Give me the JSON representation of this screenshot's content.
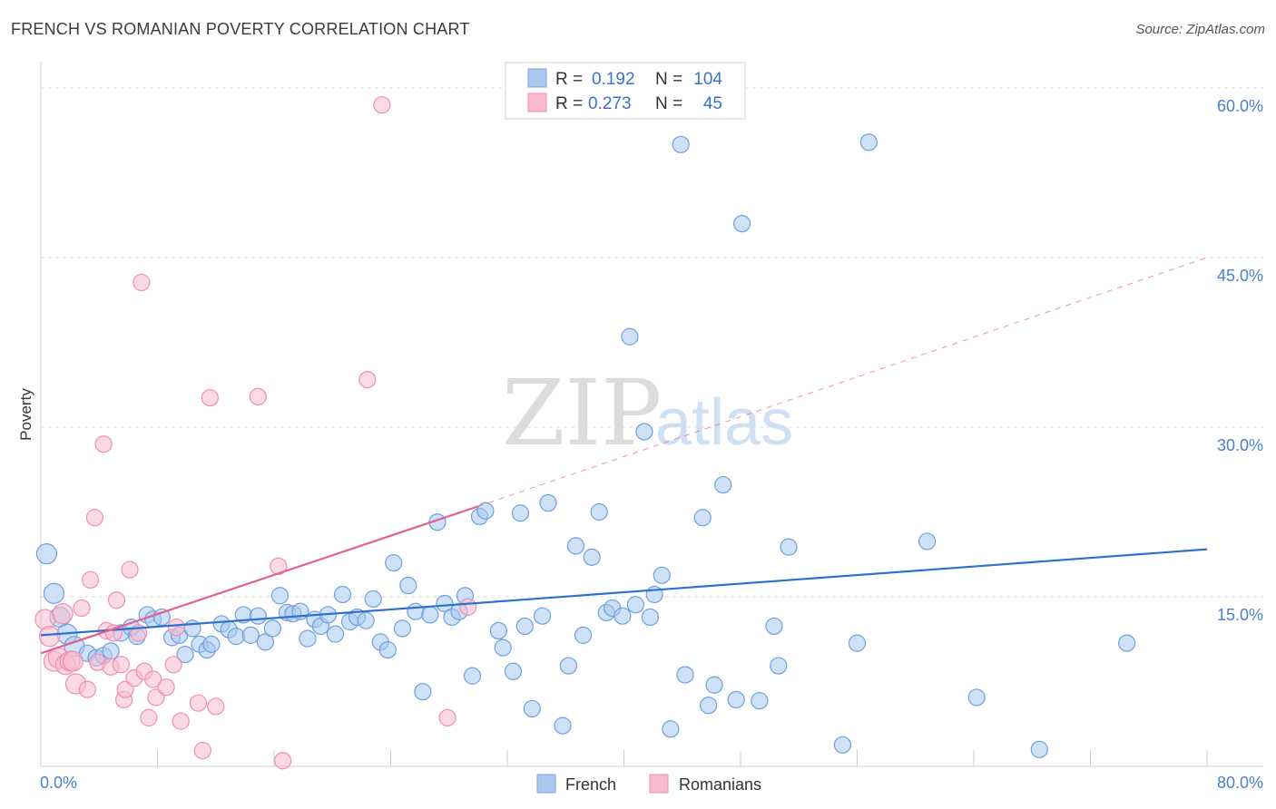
{
  "title": "FRENCH VS ROMANIAN POVERTY CORRELATION CHART",
  "source": "Source: ZipAtlas.com",
  "watermark": {
    "part1": "ZIP",
    "part2": "atlas"
  },
  "legend": {
    "rows": [
      {
        "r_label": "R =",
        "r_value": "0.192",
        "n_label": "N =",
        "n_value": "104",
        "color": "#a8c8f0",
        "stroke": "#7aa6de"
      },
      {
        "r_label": "R =",
        "r_value": "0.273",
        "n_label": "N =",
        "n_value": "45",
        "color": "#f8bcd0",
        "stroke": "#ee8eaf"
      }
    ]
  },
  "bottom_legend": [
    {
      "label": "French",
      "color": "#a8c8f0",
      "stroke": "#7aa6de"
    },
    {
      "label": "Romanians",
      "color": "#f8bcd0",
      "stroke": "#ee8eaf"
    }
  ],
  "chart_data": {
    "type": "scatter",
    "title": "FRENCH VS ROMANIAN POVERTY CORRELATION CHART",
    "xlabel": "",
    "ylabel": "Poverty",
    "xlim": [
      0,
      80
    ],
    "ylim": [
      0,
      60
    ],
    "x_tick_labels": [
      "0.0%",
      "80.0%"
    ],
    "y_ticks": [
      15,
      30,
      45,
      60
    ],
    "y_tick_labels": [
      "15.0%",
      "30.0%",
      "45.0%",
      "60.0%"
    ],
    "grid": true,
    "series": [
      {
        "name": "French",
        "color": "#6fa0e0",
        "fill": "#a8c8f0",
        "line_color": "#2f72cc",
        "trend": {
          "x": [
            0,
            80
          ],
          "y": [
            11.6,
            19.2
          ]
        },
        "points": [
          [
            0.4,
            18.8
          ],
          [
            0.9,
            15.3
          ],
          [
            1.3,
            13.2
          ],
          [
            1.8,
            11.7
          ],
          [
            2.3,
            10.6
          ],
          [
            3.2,
            10.0
          ],
          [
            3.8,
            9.6
          ],
          [
            4.3,
            9.8
          ],
          [
            4.8,
            10.2
          ],
          [
            5.5,
            11.8
          ],
          [
            6.2,
            12.3
          ],
          [
            6.6,
            11.5
          ],
          [
            7.3,
            13.4
          ],
          [
            7.7,
            13.0
          ],
          [
            8.3,
            13.2
          ],
          [
            9.0,
            11.4
          ],
          [
            9.5,
            11.6
          ],
          [
            9.9,
            9.9
          ],
          [
            10.4,
            12.2
          ],
          [
            10.9,
            10.8
          ],
          [
            11.4,
            10.3
          ],
          [
            11.7,
            10.8
          ],
          [
            12.4,
            12.6
          ],
          [
            12.9,
            12.1
          ],
          [
            13.4,
            11.5
          ],
          [
            13.9,
            13.4
          ],
          [
            14.4,
            11.6
          ],
          [
            14.9,
            13.3
          ],
          [
            15.4,
            11.0
          ],
          [
            15.9,
            12.2
          ],
          [
            16.4,
            15.1
          ],
          [
            16.9,
            13.6
          ],
          [
            17.3,
            13.5
          ],
          [
            17.8,
            13.7
          ],
          [
            18.3,
            11.3
          ],
          [
            18.8,
            13.0
          ],
          [
            19.2,
            12.4
          ],
          [
            19.7,
            13.4
          ],
          [
            20.2,
            11.7
          ],
          [
            20.7,
            15.2
          ],
          [
            21.2,
            12.8
          ],
          [
            21.7,
            13.2
          ],
          [
            22.3,
            12.9
          ],
          [
            22.8,
            14.8
          ],
          [
            23.3,
            11.0
          ],
          [
            23.8,
            10.3
          ],
          [
            24.2,
            18.0
          ],
          [
            24.8,
            12.2
          ],
          [
            25.2,
            16.0
          ],
          [
            25.7,
            13.7
          ],
          [
            26.2,
            6.6
          ],
          [
            26.7,
            13.4
          ],
          [
            27.2,
            21.6
          ],
          [
            27.7,
            14.4
          ],
          [
            28.2,
            13.2
          ],
          [
            28.7,
            13.7
          ],
          [
            29.1,
            15.1
          ],
          [
            29.6,
            8.0
          ],
          [
            30.1,
            22.1
          ],
          [
            30.5,
            22.6
          ],
          [
            31.4,
            12.0
          ],
          [
            31.7,
            10.5
          ],
          [
            32.4,
            8.4
          ],
          [
            32.9,
            22.4
          ],
          [
            33.2,
            12.4
          ],
          [
            33.7,
            5.1
          ],
          [
            34.4,
            13.3
          ],
          [
            34.8,
            23.3
          ],
          [
            35.8,
            3.6
          ],
          [
            36.2,
            8.9
          ],
          [
            36.7,
            19.5
          ],
          [
            37.2,
            11.6
          ],
          [
            37.8,
            18.5
          ],
          [
            38.3,
            22.5
          ],
          [
            38.8,
            13.6
          ],
          [
            39.2,
            14.0
          ],
          [
            39.9,
            13.3
          ],
          [
            40.4,
            38.0
          ],
          [
            40.8,
            14.3
          ],
          [
            41.4,
            29.6
          ],
          [
            41.8,
            13.2
          ],
          [
            42.1,
            15.2
          ],
          [
            42.6,
            16.9
          ],
          [
            43.2,
            3.3
          ],
          [
            43.9,
            55.0
          ],
          [
            44.2,
            8.1
          ],
          [
            45.4,
            22.0
          ],
          [
            45.8,
            5.4
          ],
          [
            46.2,
            7.2
          ],
          [
            46.8,
            24.9
          ],
          [
            47.7,
            5.9
          ],
          [
            48.1,
            48.0
          ],
          [
            49.3,
            5.8
          ],
          [
            50.3,
            12.4
          ],
          [
            50.6,
            8.9
          ],
          [
            51.3,
            19.4
          ],
          [
            55.0,
            1.9
          ],
          [
            56.0,
            10.9
          ],
          [
            56.8,
            55.2
          ],
          [
            60.8,
            19.9
          ],
          [
            64.2,
            6.1
          ],
          [
            68.5,
            1.5
          ],
          [
            74.5,
            10.9
          ]
        ]
      },
      {
        "name": "Romanians",
        "color": "#ef8fb0",
        "fill": "#f8bcd0",
        "line_color": "#e5608e",
        "trend": {
          "x": [
            0,
            30
          ],
          "y": [
            10.0,
            23.0
          ]
        },
        "trend_extension": {
          "x": [
            30,
            80
          ],
          "y": [
            23.0,
            45.0
          ]
        },
        "points": [
          [
            0.3,
            13.0
          ],
          [
            0.6,
            11.5
          ],
          [
            0.9,
            9.3
          ],
          [
            1.2,
            9.6
          ],
          [
            1.5,
            13.5
          ],
          [
            1.7,
            9.0
          ],
          [
            2.0,
            9.3
          ],
          [
            2.2,
            9.3
          ],
          [
            2.4,
            7.3
          ],
          [
            2.8,
            14.0
          ],
          [
            3.2,
            6.8
          ],
          [
            3.4,
            16.5
          ],
          [
            3.7,
            22.0
          ],
          [
            3.9,
            9.2
          ],
          [
            4.3,
            28.5
          ],
          [
            4.5,
            12.0
          ],
          [
            4.8,
            8.8
          ],
          [
            5.0,
            11.8
          ],
          [
            5.2,
            14.7
          ],
          [
            5.5,
            9.0
          ],
          [
            5.7,
            5.9
          ],
          [
            5.8,
            6.8
          ],
          [
            6.1,
            17.4
          ],
          [
            6.4,
            7.8
          ],
          [
            6.7,
            11.8
          ],
          [
            6.9,
            42.8
          ],
          [
            7.1,
            8.4
          ],
          [
            7.4,
            4.3
          ],
          [
            7.7,
            7.7
          ],
          [
            7.9,
            6.1
          ],
          [
            8.6,
            7.0
          ],
          [
            9.1,
            9.0
          ],
          [
            9.3,
            12.3
          ],
          [
            9.6,
            4.0
          ],
          [
            10.8,
            5.6
          ],
          [
            11.1,
            1.4
          ],
          [
            11.6,
            32.6
          ],
          [
            12.0,
            5.3
          ],
          [
            14.9,
            32.7
          ],
          [
            16.3,
            17.7
          ],
          [
            16.6,
            0.5
          ],
          [
            22.4,
            34.2
          ],
          [
            23.4,
            58.5
          ],
          [
            27.9,
            4.3
          ],
          [
            29.3,
            14.1
          ]
        ]
      }
    ]
  }
}
